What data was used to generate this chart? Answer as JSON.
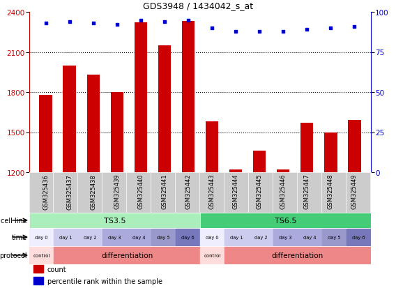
{
  "title": "GDS3948 / 1434042_s_at",
  "samples": [
    "GSM325436",
    "GSM325437",
    "GSM325438",
    "GSM325439",
    "GSM325440",
    "GSM325441",
    "GSM325442",
    "GSM325443",
    "GSM325444",
    "GSM325445",
    "GSM325446",
    "GSM325447",
    "GSM325448",
    "GSM325449"
  ],
  "bar_values": [
    1780,
    2000,
    1930,
    1800,
    2320,
    2150,
    2330,
    1580,
    1220,
    1360,
    1220,
    1570,
    1500,
    1590
  ],
  "dot_values": [
    93,
    94,
    93,
    92,
    95,
    94,
    95,
    90,
    88,
    88,
    88,
    89,
    90,
    91
  ],
  "ylim_left": [
    1200,
    2400
  ],
  "ylim_right": [
    0,
    100
  ],
  "yticks_left": [
    1200,
    1500,
    1800,
    2100,
    2400
  ],
  "yticks_right": [
    0,
    25,
    50,
    75,
    100
  ],
  "bar_color": "#cc0000",
  "dot_color": "#0000cc",
  "bg_color": "#ffffff",
  "cell_line_groups": [
    {
      "label": "TS3.5",
      "start": 0,
      "end": 7,
      "color": "#aaeebb"
    },
    {
      "label": "TS6.5",
      "start": 7,
      "end": 14,
      "color": "#44cc77"
    }
  ],
  "time_labels": [
    "day 0",
    "day 1",
    "day 2",
    "day 3",
    "day 4",
    "day 5",
    "day 6",
    "day 0",
    "day 1",
    "day 2",
    "day 3",
    "day 4",
    "day 5",
    "day 6"
  ],
  "time_colors": [
    "#eeeeff",
    "#ccccee",
    "#ccccee",
    "#aaaadd",
    "#aaaadd",
    "#9999cc",
    "#7777bb",
    "#eeeeff",
    "#ccccee",
    "#ccccee",
    "#aaaadd",
    "#aaaadd",
    "#9999cc",
    "#7777bb"
  ],
  "protocol_groups": [
    {
      "label": "control",
      "start": 0,
      "end": 1,
      "color": "#ffdddd"
    },
    {
      "label": "differentiation",
      "start": 1,
      "end": 7,
      "color": "#ee8888"
    },
    {
      "label": "control",
      "start": 7,
      "end": 8,
      "color": "#ffdddd"
    },
    {
      "label": "differentiation",
      "start": 8,
      "end": 14,
      "color": "#ee8888"
    }
  ],
  "row_labels": [
    "cell line",
    "time",
    "protocol"
  ],
  "legend_items": [
    {
      "label": "count",
      "color": "#cc0000"
    },
    {
      "label": "percentile rank within the sample",
      "color": "#0000cc"
    }
  ]
}
